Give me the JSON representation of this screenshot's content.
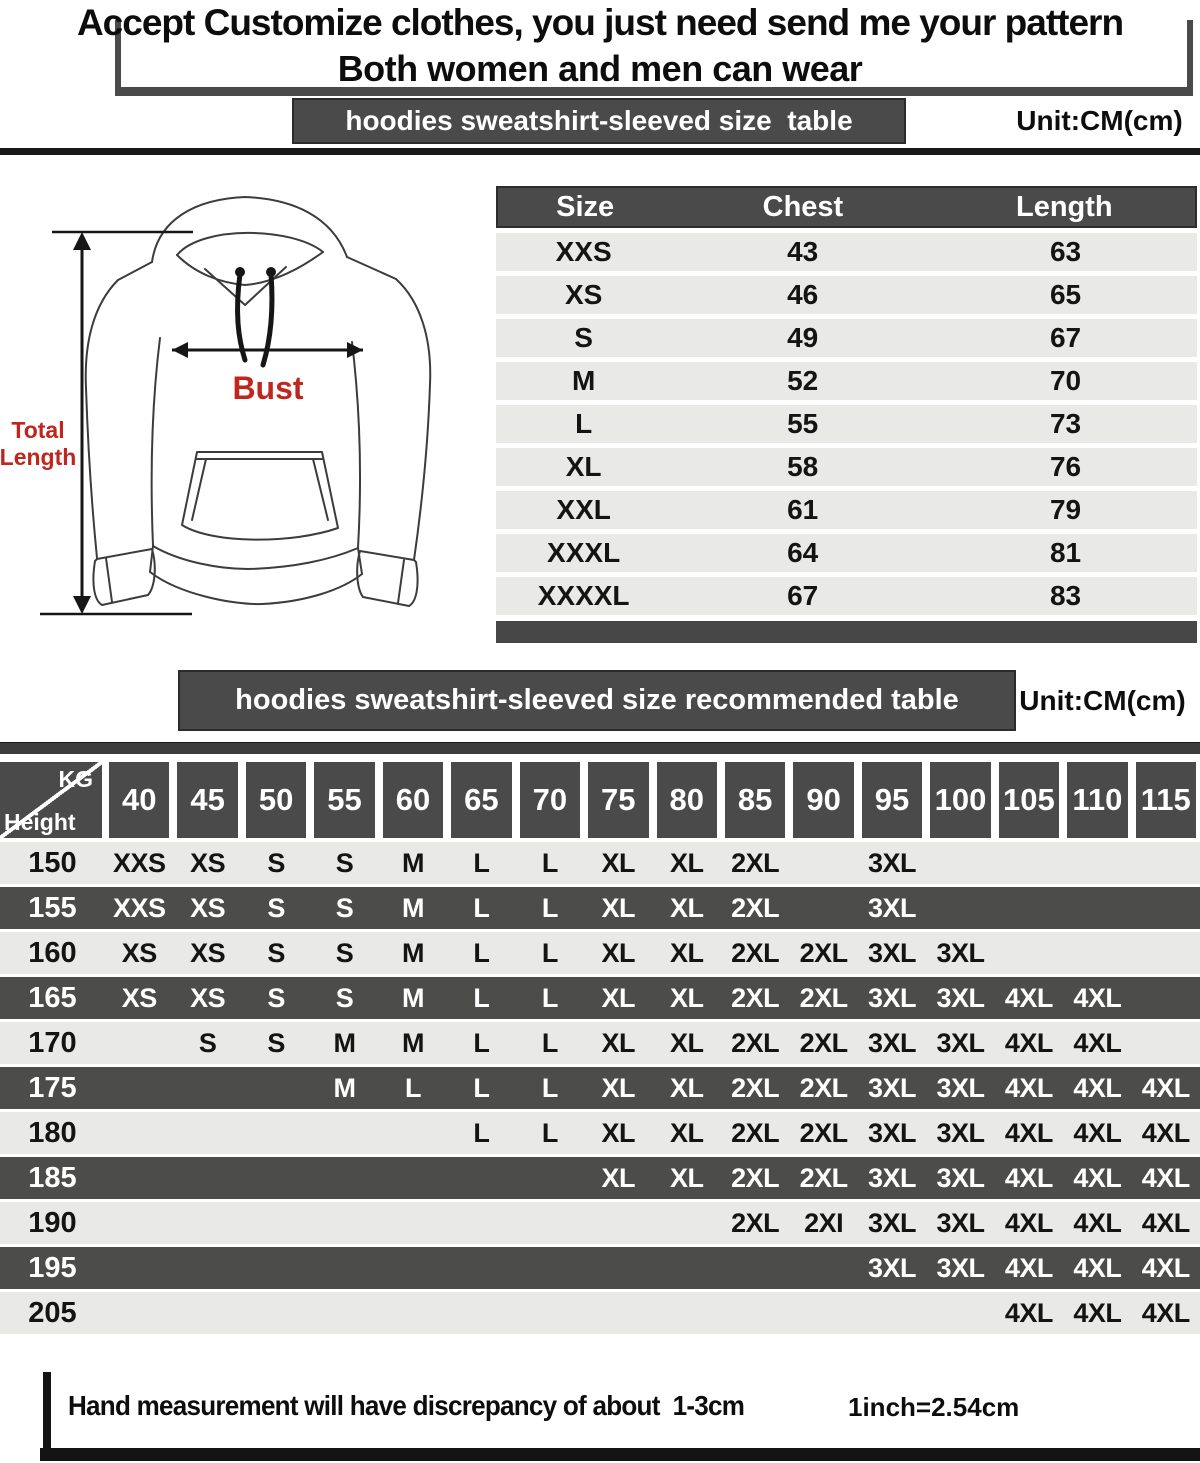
{
  "top_note": {
    "line1": "Accept Customize clothes, you just need send me your pattern",
    "line2": "Both women and men can wear"
  },
  "size_section": {
    "title": "hoodies sweatshirt-sleeved size  table",
    "unit": "Unit:CM(cm)",
    "columns": [
      "Size",
      "Chest",
      "Length"
    ],
    "rows": [
      {
        "size": "XXS",
        "chest": "43",
        "length": "63"
      },
      {
        "size": "XS",
        "chest": "46",
        "length": "65"
      },
      {
        "size": "S",
        "chest": "49",
        "length": "67"
      },
      {
        "size": "M",
        "chest": "52",
        "length": "70"
      },
      {
        "size": "L",
        "chest": "55",
        "length": "73"
      },
      {
        "size": "XL",
        "chest": "58",
        "length": "76"
      },
      {
        "size": "XXL",
        "chest": "61",
        "length": "79"
      },
      {
        "size": "XXXL",
        "chest": "64",
        "length": "81"
      },
      {
        "size": "XXXXL",
        "chest": "67",
        "length": "83"
      }
    ]
  },
  "diagram": {
    "bust_label": "Bust",
    "total_length_line1": "Total",
    "total_length_line2": "Length"
  },
  "recommended_section": {
    "title": "hoodies sweatshirt-sleeved size recommended table",
    "unit": "Unit:CM(cm)",
    "corner_top": "KG",
    "corner_bottom": "Height",
    "weights": [
      "40",
      "45",
      "50",
      "55",
      "60",
      "65",
      "70",
      "75",
      "80",
      "85",
      "90",
      "95",
      "100",
      "105",
      "110",
      "115"
    ],
    "rows": [
      {
        "height": "150",
        "sizes": [
          "XXS",
          "XS",
          "S",
          "S",
          "M",
          "L",
          "L",
          "XL",
          "XL",
          "2XL",
          "",
          "3XL",
          "",
          "",
          "",
          ""
        ]
      },
      {
        "height": "155",
        "sizes": [
          "XXS",
          "XS",
          "S",
          "S",
          "M",
          "L",
          "L",
          "XL",
          "XL",
          "2XL",
          "",
          "3XL",
          "",
          "",
          "",
          ""
        ]
      },
      {
        "height": "160",
        "sizes": [
          "XS",
          "XS",
          "S",
          "S",
          "M",
          "L",
          "L",
          "XL",
          "XL",
          "2XL",
          "2XL",
          "3XL",
          "3XL",
          "",
          "",
          ""
        ]
      },
      {
        "height": "165",
        "sizes": [
          "XS",
          "XS",
          "S",
          "S",
          "M",
          "L",
          "L",
          "XL",
          "XL",
          "2XL",
          "2XL",
          "3XL",
          "3XL",
          "4XL",
          "4XL",
          ""
        ]
      },
      {
        "height": "170",
        "sizes": [
          "",
          "S",
          "S",
          "M",
          "M",
          "L",
          "L",
          "XL",
          "XL",
          "2XL",
          "2XL",
          "3XL",
          "3XL",
          "4XL",
          "4XL",
          ""
        ]
      },
      {
        "height": "175",
        "sizes": [
          "",
          "",
          "",
          "M",
          "L",
          "L",
          "L",
          "XL",
          "XL",
          "2XL",
          "2XL",
          "3XL",
          "3XL",
          "4XL",
          "4XL",
          "4XL"
        ]
      },
      {
        "height": "180",
        "sizes": [
          "",
          "",
          "",
          "",
          "",
          "L",
          "L",
          "XL",
          "XL",
          "2XL",
          "2XL",
          "3XL",
          "3XL",
          "4XL",
          "4XL",
          "4XL"
        ]
      },
      {
        "height": "185",
        "sizes": [
          "",
          "",
          "",
          "",
          "",
          "",
          "",
          "XL",
          "XL",
          "2XL",
          "2XL",
          "3XL",
          "3XL",
          "4XL",
          "4XL",
          "4XL"
        ]
      },
      {
        "height": "190",
        "sizes": [
          "",
          "",
          "",
          "",
          "",
          "",
          "",
          "",
          "",
          "2XL",
          "2XI",
          "3XL",
          "3XL",
          "4XL",
          "4XL",
          "4XL"
        ]
      },
      {
        "height": "195",
        "sizes": [
          "",
          "",
          "",
          "",
          "",
          "",
          "",
          "",
          "",
          "",
          "",
          "3XL",
          "3XL",
          "4XL",
          "4XL",
          "4XL"
        ]
      },
      {
        "height": "205",
        "sizes": [
          "",
          "",
          "",
          "",
          "",
          "",
          "",
          "",
          "",
          "",
          "",
          "",
          "",
          "4XL",
          "4XL",
          "4XL"
        ]
      }
    ]
  },
  "footer": {
    "note": "Hand measurement will have discrepancy of about  1-3cm",
    "conversion": "1inch=2.54cm"
  },
  "colors": {
    "dark-gray": "#4a4a4a",
    "row-light": "#e9e9e7",
    "row-dark": "#4c4c4b",
    "accent-red": "#c0251e",
    "ink": "#161616"
  }
}
